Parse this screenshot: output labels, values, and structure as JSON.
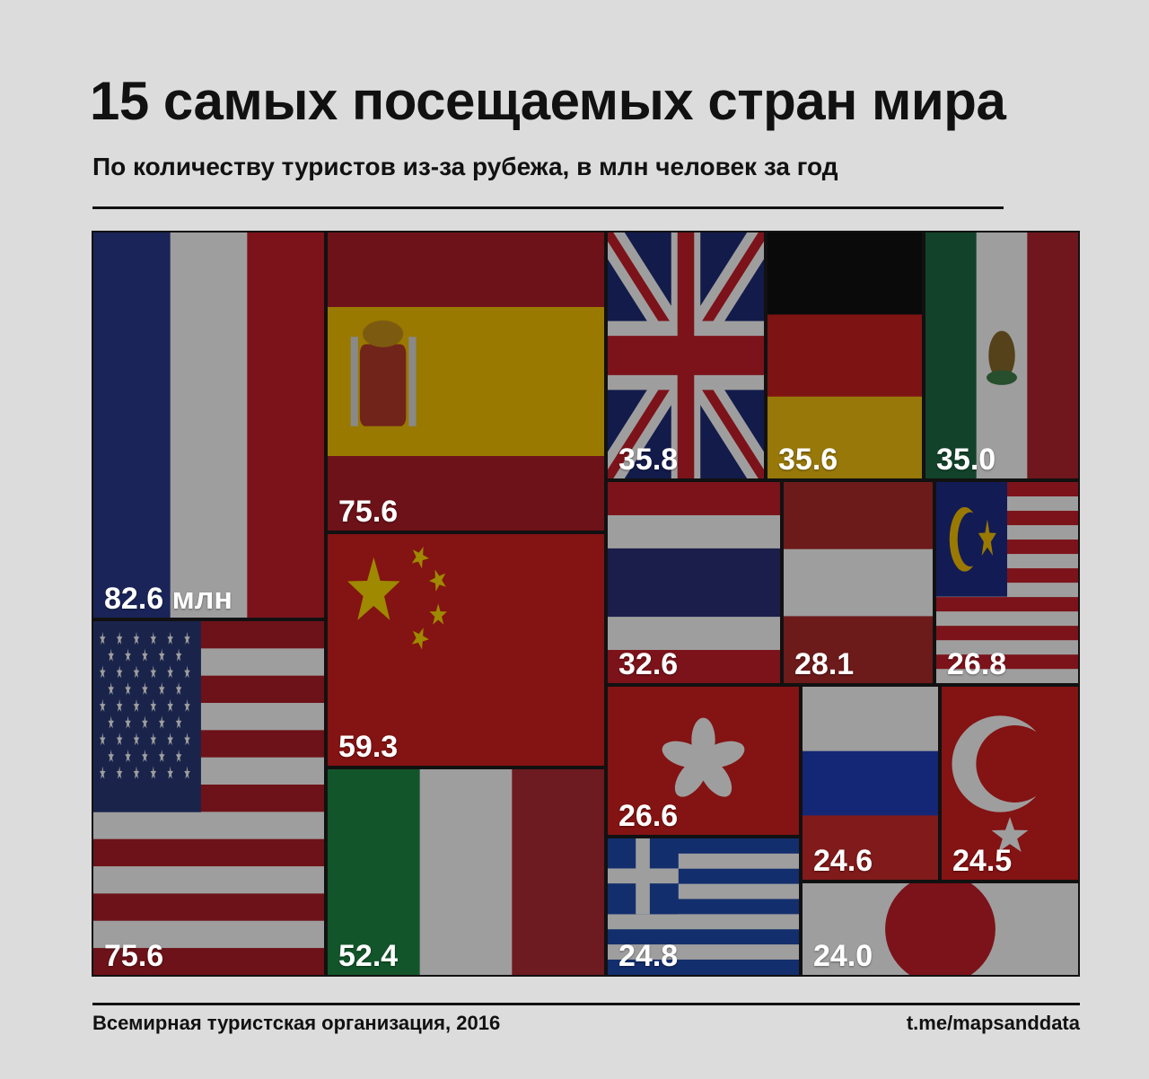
{
  "title": "15 самых посещаемых стран мира",
  "subtitle": "По количеству туристов из-за рубежа, в млн человек за год",
  "source": "Всемирная туристская организация, 2016",
  "credit": "t.me/mapsanddata",
  "chart_data": {
    "type": "treemap",
    "title": "15 самых посещаемых стран мира",
    "subtitle": "По количеству туристов из-за рубежа, в млн человек за год",
    "unit": "млн",
    "items": [
      {
        "flag": "france-flag-icon",
        "value": 82.6,
        "label": "82.6 млн"
      },
      {
        "flag": "usa-flag-icon",
        "value": 75.6,
        "label": "75.6"
      },
      {
        "flag": "spain-flag-icon",
        "value": 75.6,
        "label": "75.6"
      },
      {
        "flag": "china-flag-icon",
        "value": 59.3,
        "label": "59.3"
      },
      {
        "flag": "italy-flag-icon",
        "value": 52.4,
        "label": "52.4"
      },
      {
        "flag": "uk-flag-icon",
        "value": 35.8,
        "label": "35.8"
      },
      {
        "flag": "germany-flag-icon",
        "value": 35.6,
        "label": "35.6"
      },
      {
        "flag": "mexico-flag-icon",
        "value": 35.0,
        "label": "35.0"
      },
      {
        "flag": "thailand-flag-icon",
        "value": 32.6,
        "label": "32.6"
      },
      {
        "flag": "austria-flag-icon",
        "value": 28.1,
        "label": "28.1"
      },
      {
        "flag": "malaysia-flag-icon",
        "value": 26.8,
        "label": "26.8"
      },
      {
        "flag": "hong-kong-flag-icon",
        "value": 26.6,
        "label": "26.6"
      },
      {
        "flag": "greece-flag-icon",
        "value": 24.8,
        "label": "24.8"
      },
      {
        "flag": "russia-flag-icon",
        "value": 24.6,
        "label": "24.6"
      },
      {
        "flag": "turkey-flag-icon",
        "value": 24.5,
        "label": "24.5"
      },
      {
        "flag": "japan-flag-icon",
        "value": 24.0,
        "label": "24.0"
      }
    ]
  }
}
